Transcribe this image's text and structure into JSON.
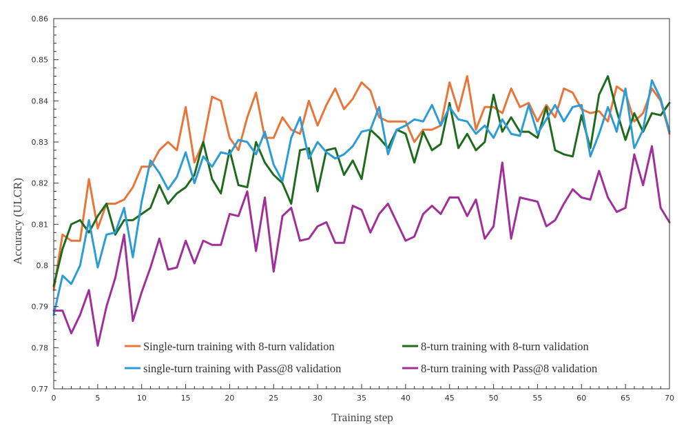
{
  "chart_data": {
    "type": "line",
    "title": "",
    "xlabel": "Training  step",
    "ylabel": "Accuracy (ULCR)",
    "xlim": [
      0,
      70
    ],
    "ylim": [
      0.77,
      0.86
    ],
    "x_ticks": [
      0,
      5,
      10,
      15,
      20,
      25,
      30,
      35,
      40,
      45,
      50,
      55,
      60,
      65,
      70
    ],
    "y_ticks": [
      0.77,
      0.78,
      0.79,
      0.8,
      0.81,
      0.82,
      0.83,
      0.84,
      0.85,
      0.86
    ],
    "y_tick_labels": [
      "0.77",
      "0.78",
      "0.79",
      "0.8",
      "0.81",
      "0.82",
      "0.83",
      "0.84",
      "0.85",
      "0.86"
    ],
    "grid": false,
    "legend_position": "bottom",
    "series": [
      {
        "name": "Single-turn training with 8-turn validation",
        "color": "#E8763A",
        "values": [
          0.794,
          0.8075,
          0.806,
          0.806,
          0.821,
          0.809,
          0.815,
          0.815,
          0.816,
          0.819,
          0.824,
          0.824,
          0.828,
          0.83,
          0.828,
          0.8385,
          0.825,
          0.83,
          0.841,
          0.84,
          0.831,
          0.828,
          0.836,
          0.842,
          0.831,
          0.831,
          0.836,
          0.833,
          0.832,
          0.84,
          0.834,
          0.839,
          0.843,
          0.838,
          0.8405,
          0.8445,
          0.8425,
          0.836,
          0.835,
          0.835,
          0.835,
          0.83,
          0.833,
          0.833,
          0.834,
          0.8445,
          0.8375,
          0.846,
          0.833,
          0.8385,
          0.8385,
          0.837,
          0.843,
          0.8385,
          0.8395,
          0.835,
          0.839,
          0.836,
          0.843,
          0.842,
          0.838,
          0.837,
          0.8375,
          0.835,
          0.8435,
          0.842,
          0.835,
          0.837,
          0.843,
          0.84,
          0.832
        ]
      },
      {
        "name": "8-turn training with 8-turn validation",
        "color": "#1E6B1E",
        "values": [
          0.795,
          0.804,
          0.81,
          0.811,
          0.808,
          0.812,
          0.815,
          0.8075,
          0.811,
          0.811,
          0.8125,
          0.814,
          0.8195,
          0.815,
          0.8175,
          0.819,
          0.822,
          0.83,
          0.821,
          0.8175,
          0.828,
          0.8195,
          0.819,
          0.83,
          0.825,
          0.822,
          0.82,
          0.815,
          0.828,
          0.8285,
          0.818,
          0.828,
          0.8285,
          0.822,
          0.8255,
          0.821,
          0.833,
          0.831,
          0.8285,
          0.833,
          0.832,
          0.825,
          0.8325,
          0.828,
          0.8295,
          0.8395,
          0.8285,
          0.832,
          0.828,
          0.83,
          0.8415,
          0.8325,
          0.836,
          0.8325,
          0.8325,
          0.831,
          0.8385,
          0.828,
          0.827,
          0.8265,
          0.8365,
          0.8285,
          0.8415,
          0.846,
          0.8375,
          0.8305,
          0.837,
          0.8325,
          0.837,
          0.8365,
          0.8395
        ]
      },
      {
        "name": "single-turn training with Pass@8 validation",
        "color": "#2B9CD8",
        "values": [
          0.788,
          0.7975,
          0.7955,
          0.8,
          0.811,
          0.7995,
          0.8075,
          0.808,
          0.814,
          0.802,
          0.8155,
          0.8255,
          0.8225,
          0.8185,
          0.8215,
          0.8275,
          0.82,
          0.8265,
          0.824,
          0.8275,
          0.827,
          0.8305,
          0.83,
          0.827,
          0.8325,
          0.8245,
          0.8205,
          0.831,
          0.836,
          0.826,
          0.83,
          0.8275,
          0.826,
          0.827,
          0.829,
          0.8325,
          0.833,
          0.8385,
          0.827,
          0.833,
          0.834,
          0.8355,
          0.835,
          0.839,
          0.834,
          0.8385,
          0.8355,
          0.835,
          0.832,
          0.834,
          0.831,
          0.8355,
          0.832,
          0.8315,
          0.839,
          0.832,
          0.8355,
          0.839,
          0.835,
          0.8385,
          0.839,
          0.8265,
          0.832,
          0.8385,
          0.8325,
          0.843,
          0.8285,
          0.833,
          0.845,
          0.8405,
          0.8325
        ]
      },
      {
        "name": "8-turn training with Pass@8 validation",
        "color": "#A12F9A",
        "values": [
          0.789,
          0.789,
          0.7835,
          0.788,
          0.794,
          0.7805,
          0.79,
          0.797,
          0.8075,
          0.7865,
          0.7935,
          0.7995,
          0.8065,
          0.799,
          0.7995,
          0.806,
          0.8005,
          0.806,
          0.805,
          0.805,
          0.8125,
          0.812,
          0.818,
          0.8035,
          0.8165,
          0.7985,
          0.812,
          0.814,
          0.806,
          0.8065,
          0.8095,
          0.8105,
          0.8055,
          0.8055,
          0.8145,
          0.8135,
          0.808,
          0.8125,
          0.815,
          0.8105,
          0.806,
          0.807,
          0.8125,
          0.8145,
          0.8125,
          0.8165,
          0.8165,
          0.812,
          0.816,
          0.8065,
          0.8095,
          0.825,
          0.8065,
          0.8165,
          0.816,
          0.8155,
          0.8095,
          0.811,
          0.815,
          0.8185,
          0.8165,
          0.816,
          0.823,
          0.8165,
          0.813,
          0.814,
          0.827,
          0.8195,
          0.829,
          0.814,
          0.8105
        ]
      }
    ]
  }
}
